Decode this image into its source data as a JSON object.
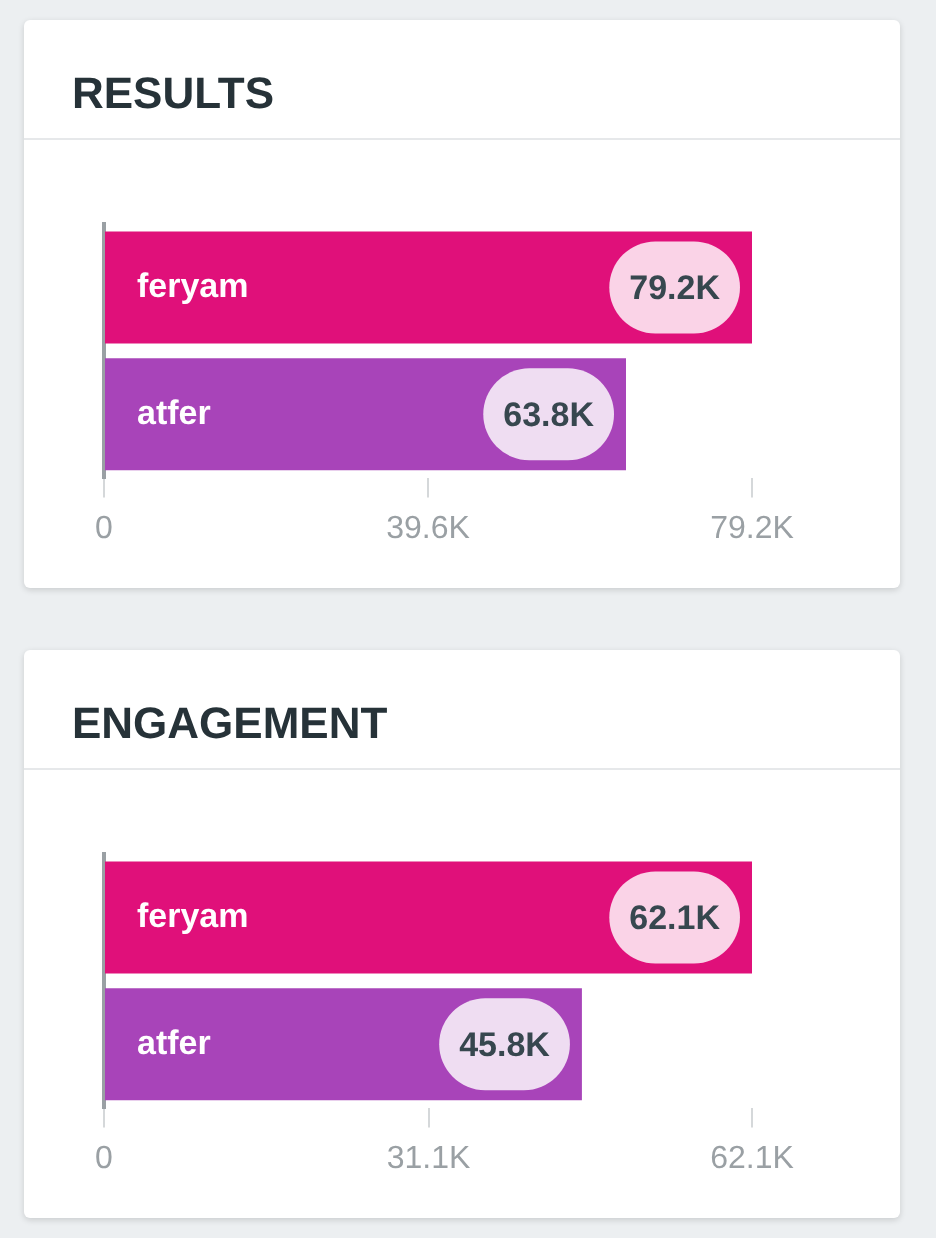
{
  "chart_data": [
    {
      "type": "bar",
      "orientation": "horizontal",
      "title": "RESULTS",
      "categories": [
        "feryam",
        "atfer"
      ],
      "values": [
        79200,
        63800
      ],
      "colors": [
        "#e0107a",
        "#a844b9"
      ],
      "value_labels": [
        "79.2K",
        "63.8K"
      ],
      "xlim": [
        0,
        79200
      ],
      "xticks": [
        0,
        {
          "value": 39600,
          "label": "39.6K"
        },
        {
          "value": 79200,
          "label": "79.2K"
        }
      ],
      "grid": false,
      "legend": false
    },
    {
      "type": "bar",
      "orientation": "horizontal",
      "title": "ENGAGEMENT",
      "categories": [
        "feryam",
        "atfer"
      ],
      "values": [
        62100,
        45800
      ],
      "colors": [
        "#e0107a",
        "#a844b9"
      ],
      "value_labels": [
        "62.1K",
        "45.8K"
      ],
      "xlim": [
        0,
        62100
      ],
      "xticks": [
        0,
        {
          "value": 31100,
          "label": "31.1K"
        },
        {
          "value": 62100,
          "label": "62.1K"
        }
      ],
      "grid": false,
      "legend": false
    }
  ]
}
